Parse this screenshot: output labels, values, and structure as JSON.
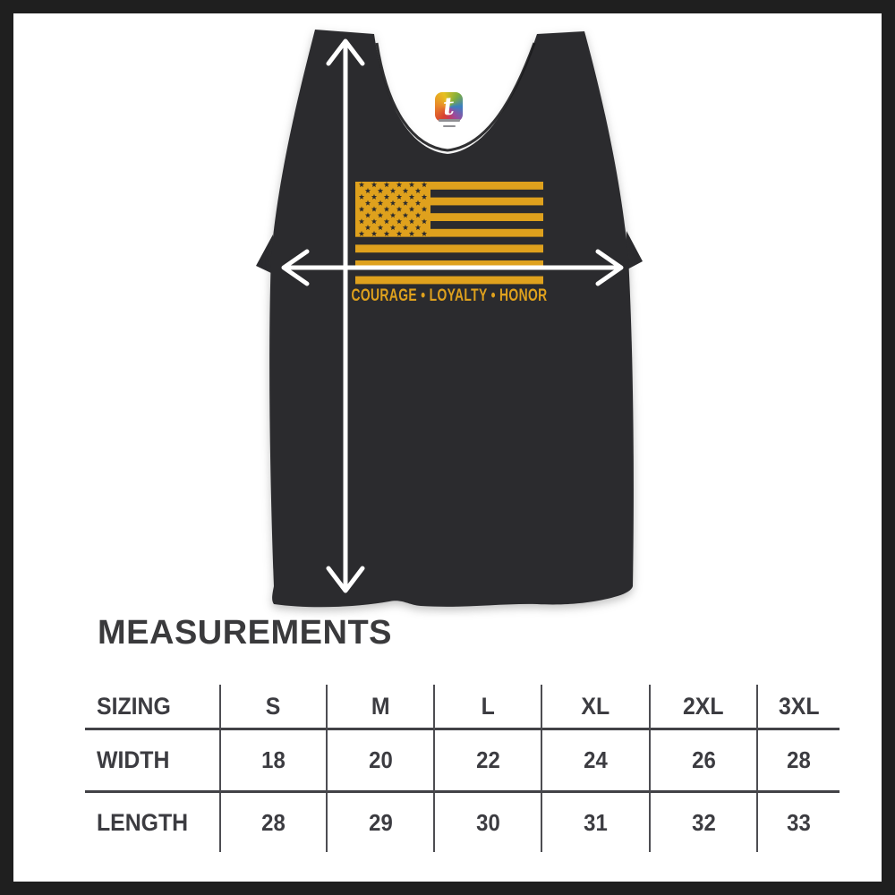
{
  "frame": {
    "border_color": "#1f1f1f",
    "background": "#ffffff"
  },
  "shirt": {
    "color": "#2b2b2e",
    "slogan": "COURAGE • LOYALTY • HONOR",
    "logo_letter": "t",
    "flag": {
      "gold": "#dfa11d",
      "stripe_count": 13,
      "star_rows": [
        6,
        5,
        6,
        5,
        6,
        5,
        6,
        5,
        6
      ]
    }
  },
  "arrows": {
    "color": "#ffffff",
    "vertical_meaning": "length",
    "horizontal_meaning": "width"
  },
  "heading": "MEASUREMENTS",
  "size_table": {
    "columns": [
      "SIZING",
      "S",
      "M",
      "L",
      "XL",
      "2XL",
      "3XL"
    ],
    "rows": [
      {
        "label": "WIDTH",
        "values": [
          "18",
          "20",
          "22",
          "24",
          "26",
          "28"
        ]
      },
      {
        "label": "LENGTH",
        "values": [
          "28",
          "29",
          "30",
          "31",
          "32",
          "33"
        ]
      }
    ]
  }
}
